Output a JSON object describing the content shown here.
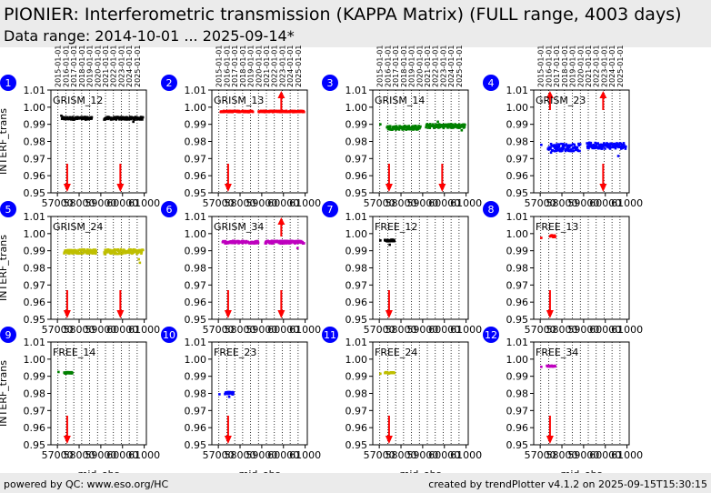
{
  "header": {
    "title": "PIONIER: Interferometric transmission (KAPPA Matrix) (FULL range, 4003 days)",
    "subtitle": "Data range: 2014-10-01 ... 2025-09-14*"
  },
  "footer": {
    "left": "powered by QC: www.eso.org/HC",
    "right": "created by trendPlotter v4.1.2 on 2025-09-15T15:30:15"
  },
  "chart_data": {
    "type": "scatter",
    "xlabel": "mjd_obs",
    "ylabel": "INTERF_trans",
    "xlim": [
      56700,
      61100
    ],
    "ylim": [
      0.95,
      1.01
    ],
    "x_ticks": [
      57000,
      58000,
      59000,
      60000,
      61000
    ],
    "x_tick_labels": [
      "57000",
      "58000",
      "59000",
      "60000",
      "61000"
    ],
    "y_ticks": [
      0.95,
      0.96,
      0.97,
      0.98,
      0.99,
      1.0,
      1.01
    ],
    "y_tick_labels": [
      "0.95",
      "0.96",
      "0.97",
      "0.98",
      "0.99",
      "1.00",
      "1.01"
    ],
    "year_marks": [
      {
        "label": "2015-01-01",
        "mjd": 57023
      },
      {
        "label": "2016-01-01",
        "mjd": 57388
      },
      {
        "label": "2017-01-01",
        "mjd": 57754
      },
      {
        "label": "2018-01-01",
        "mjd": 58119
      },
      {
        "label": "2019-01-01",
        "mjd": 58484
      },
      {
        "label": "2020-01-01",
        "mjd": 58849
      },
      {
        "label": "2021-01-01",
        "mjd": 59215
      },
      {
        "label": "2022-01-01",
        "mjd": 59580
      },
      {
        "label": "2023-01-01",
        "mjd": 59945
      },
      {
        "label": "2024-01-01",
        "mjd": 60310
      },
      {
        "label": "2025-01-01",
        "mjd": 60676
      }
    ],
    "panels": [
      {
        "number": "1",
        "name": "GRISM_12",
        "color": "#000000",
        "show_years": true,
        "segments": [
          {
            "x0": 57200,
            "x1": 58600,
            "y": 0.9935,
            "spread": 0.0008
          },
          {
            "x0": 59150,
            "x1": 60950,
            "y": 0.9935,
            "spread": 0.0008
          }
        ],
        "outliers": [
          {
            "x": 57180,
            "y": 0.995
          },
          {
            "x": 60500,
            "y": 0.9915
          }
        ],
        "events": [
          {
            "x": 57450,
            "dir": "down"
          },
          {
            "x": 59900,
            "dir": "down"
          }
        ]
      },
      {
        "number": "2",
        "name": "GRISM_13",
        "color": "#ff0000",
        "show_years": true,
        "segments": [
          {
            "x0": 57100,
            "x1": 58600,
            "y": 0.9975,
            "spread": 0.0004
          },
          {
            "x0": 58850,
            "x1": 60950,
            "y": 0.9975,
            "spread": 0.0004
          }
        ],
        "outliers": [],
        "events": [
          {
            "x": 57450,
            "dir": "down"
          },
          {
            "x": 59900,
            "dir": "up"
          }
        ]
      },
      {
        "number": "3",
        "name": "GRISM_14",
        "color": "#008000",
        "show_years": true,
        "segments": [
          {
            "x0": 57350,
            "x1": 58900,
            "y": 0.988,
            "spread": 0.0012
          },
          {
            "x0": 59150,
            "x1": 60950,
            "y": 0.989,
            "spread": 0.0012
          }
        ],
        "outliers": [
          {
            "x": 57050,
            "y": 0.99
          },
          {
            "x": 59700,
            "y": 0.9915
          },
          {
            "x": 60800,
            "y": 0.9865
          }
        ],
        "events": [
          {
            "x": 57450,
            "dir": "down"
          },
          {
            "x": 59900,
            "dir": "down"
          }
        ]
      },
      {
        "number": "4",
        "name": "GRISM_23",
        "color": "#0000ff",
        "show_years": true,
        "segments": [
          {
            "x0": 57350,
            "x1": 58850,
            "y": 0.9765,
            "spread": 0.0022
          },
          {
            "x0": 59150,
            "x1": 60950,
            "y": 0.9775,
            "spread": 0.0018
          }
        ],
        "outliers": [
          {
            "x": 57050,
            "y": 0.978
          },
          {
            "x": 57500,
            "y": 0.9735
          },
          {
            "x": 60600,
            "y": 0.9715
          }
        ],
        "events": [
          {
            "x": 57450,
            "dir": "up"
          },
          {
            "x": 59900,
            "dir": "up"
          },
          {
            "x": 59900,
            "dir": "down"
          }
        ]
      },
      {
        "number": "5",
        "name": "GRISM_24",
        "color": "#bfbf00",
        "show_years": false,
        "segments": [
          {
            "x0": 57300,
            "x1": 58800,
            "y": 0.9895,
            "spread": 0.0012
          },
          {
            "x0": 59150,
            "x1": 60950,
            "y": 0.9895,
            "spread": 0.0014
          }
        ],
        "outliers": [
          {
            "x": 60750,
            "y": 0.985
          },
          {
            "x": 60800,
            "y": 0.983
          }
        ],
        "events": [
          {
            "x": 57450,
            "dir": "down"
          },
          {
            "x": 59900,
            "dir": "down"
          }
        ]
      },
      {
        "number": "6",
        "name": "GRISM_34",
        "color": "#bf00bf",
        "show_years": false,
        "segments": [
          {
            "x0": 57200,
            "x1": 58850,
            "y": 0.995,
            "spread": 0.0008
          },
          {
            "x0": 59150,
            "x1": 60950,
            "y": 0.995,
            "spread": 0.0008
          }
        ],
        "outliers": [
          {
            "x": 60650,
            "y": 0.9915
          }
        ],
        "events": [
          {
            "x": 57450,
            "dir": "down"
          },
          {
            "x": 59900,
            "dir": "down"
          },
          {
            "x": 59900,
            "dir": "up"
          }
        ]
      },
      {
        "number": "7",
        "name": "FREE_12",
        "color": "#000000",
        "show_years": false,
        "segments": [
          {
            "x0": 57250,
            "x1": 57700,
            "y": 0.996,
            "spread": 0.0005
          }
        ],
        "outliers": [
          {
            "x": 57050,
            "y": 0.996
          },
          {
            "x": 57480,
            "y": 0.9935
          }
        ],
        "events": [
          {
            "x": 57450,
            "dir": "down"
          }
        ]
      },
      {
        "number": "8",
        "name": "FREE_13",
        "color": "#ff0000",
        "show_years": false,
        "segments": [
          {
            "x0": 57450,
            "x1": 57700,
            "y": 0.9985,
            "spread": 0.0006
          }
        ],
        "outliers": [
          {
            "x": 57050,
            "y": 0.9975
          }
        ],
        "events": [
          {
            "x": 57450,
            "dir": "down"
          }
        ]
      },
      {
        "number": "9",
        "name": "FREE_14",
        "color": "#008000",
        "show_years": false,
        "segments": [
          {
            "x0": 57300,
            "x1": 57700,
            "y": 0.992,
            "spread": 0.0004
          }
        ],
        "outliers": [
          {
            "x": 57050,
            "y": 0.9925
          }
        ],
        "events": [
          {
            "x": 57450,
            "dir": "down"
          }
        ]
      },
      {
        "number": "10",
        "name": "FREE_23",
        "color": "#0000ff",
        "show_years": false,
        "segments": [
          {
            "x0": 57300,
            "x1": 57700,
            "y": 0.98,
            "spread": 0.0008
          }
        ],
        "outliers": [
          {
            "x": 57050,
            "y": 0.9795
          },
          {
            "x": 57500,
            "y": 0.978
          }
        ],
        "events": [
          {
            "x": 57450,
            "dir": "down"
          }
        ]
      },
      {
        "number": "11",
        "name": "FREE_24",
        "color": "#bfbf00",
        "show_years": false,
        "segments": [
          {
            "x0": 57250,
            "x1": 57700,
            "y": 0.992,
            "spread": 0.0004
          }
        ],
        "outliers": [
          {
            "x": 57050,
            "y": 0.9915
          }
        ],
        "events": [
          {
            "x": 57450,
            "dir": "down"
          }
        ]
      },
      {
        "number": "12",
        "name": "FREE_34",
        "color": "#bf00bf",
        "show_years": false,
        "segments": [
          {
            "x0": 57300,
            "x1": 57700,
            "y": 0.996,
            "spread": 0.0004
          }
        ],
        "outliers": [
          {
            "x": 57050,
            "y": 0.9955
          }
        ],
        "events": [
          {
            "x": 57450,
            "dir": "down"
          }
        ]
      }
    ]
  }
}
